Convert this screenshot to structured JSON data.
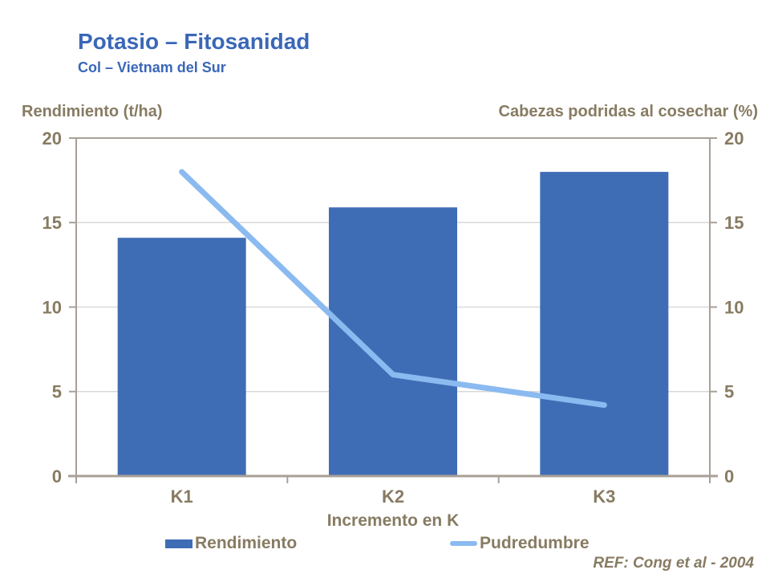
{
  "header": {
    "title": "Potasio – Fitosanidad",
    "subtitle": "Col – Vietnam del Sur"
  },
  "axes": {
    "left_label": "Rendimiento (t/ha)",
    "right_label": "Cabezas podridas al cosechar (%)",
    "x_title": "Incremento en K"
  },
  "legend": [
    {
      "label": "Rendimiento",
      "type": "bar"
    },
    {
      "label": "Pudredumbre",
      "type": "line"
    }
  ],
  "footer": {
    "ref": "REF: Cong et al - 2004"
  },
  "colors": {
    "title": "#3A67B7",
    "text": "#877B62",
    "bar": "#3F6DB5",
    "line": "#8ABAF0",
    "grid": "#D9D9D9",
    "axis": "#A8A096"
  },
  "chart_data": {
    "type": "bar",
    "categories": [
      "K1",
      "K2",
      "K3"
    ],
    "series": [
      {
        "name": "Rendimiento",
        "type": "bar",
        "axis": "left",
        "values": [
          14.1,
          15.9,
          18.0
        ]
      },
      {
        "name": "Pudredumbre",
        "type": "line",
        "axis": "right",
        "values": [
          18.0,
          6.0,
          4.2
        ]
      }
    ],
    "title": "Potasio – Fitosanidad",
    "subtitle": "Col – Vietnam del Sur",
    "xlabel": "Incremento en K",
    "ylabel_left": "Rendimiento (t/ha)",
    "ylabel_right": "Cabezas podridas al cosechar (%)",
    "ylim": [
      0,
      20
    ],
    "yticks": [
      0,
      5,
      10,
      15,
      20
    ],
    "grid": true,
    "legend_position": "bottom",
    "annotation": "REF: Cong et al - 2004"
  }
}
